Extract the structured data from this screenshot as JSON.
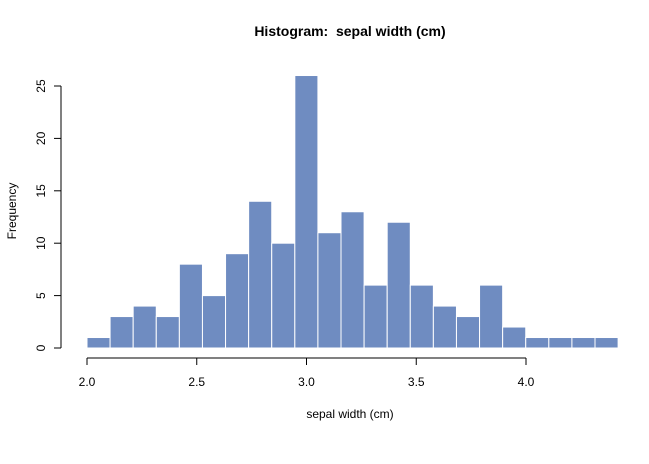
{
  "chart_data": {
    "type": "bar",
    "title": "Histogram:  sepal width (cm)",
    "xlabel": "sepal width (cm)",
    "ylabel": "Frequency",
    "bin_start": 2.0,
    "bin_width": 0.1052,
    "values": [
      1,
      3,
      4,
      3,
      8,
      5,
      9,
      14,
      10,
      26,
      11,
      13,
      6,
      12,
      6,
      4,
      3,
      6,
      2,
      1,
      1,
      1,
      1
    ],
    "x_ticks": [
      "2.0",
      "2.5",
      "3.0",
      "3.5",
      "4.0"
    ],
    "y_ticks": [
      "0",
      "5",
      "10",
      "15",
      "20",
      "25"
    ],
    "xlim": [
      2.0,
      4.42
    ],
    "ylim": [
      0,
      25
    ],
    "bar_color": "#6f8cc1",
    "edge_color": "#ffffff",
    "grid": false
  }
}
